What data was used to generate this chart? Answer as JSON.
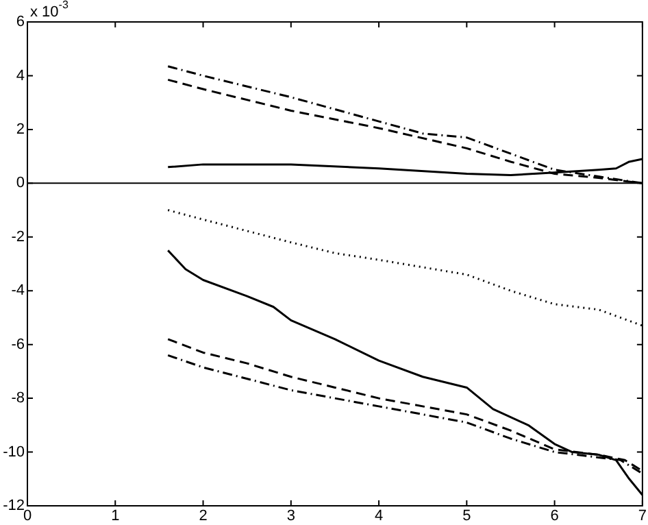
{
  "chart_data": {
    "type": "line",
    "x": [
      1.6,
      2,
      3,
      4,
      4.5,
      5,
      5.5,
      6,
      6.5,
      7
    ],
    "series": [
      {
        "color": "#000000",
        "line_style": "dashdot",
        "values": [
          4.35,
          4.0,
          3.2,
          2.3,
          1.85,
          1.7,
          1.1,
          0.5,
          0.25,
          0
        ]
      },
      {
        "color": "#000000",
        "line_style": "dashed",
        "x": [
          1.6,
          2,
          3,
          4,
          5,
          5.5,
          6,
          6.5,
          7
        ],
        "values": [
          3.85,
          3.5,
          2.7,
          2.05,
          1.3,
          0.8,
          0.35,
          0.2,
          0
        ]
      },
      {
        "color": "#000000",
        "line_style": "solid",
        "x": [
          1.6,
          2,
          3,
          4,
          5,
          5.5,
          6,
          6.5,
          6.7,
          6.85,
          7
        ],
        "values": [
          0.6,
          0.7,
          0.7,
          0.55,
          0.35,
          0.3,
          0.4,
          0.5,
          0.55,
          0.8,
          0.9
        ]
      },
      {
        "color": "#000000",
        "line_style": "dotted",
        "x": [
          1.6,
          2,
          3,
          3.5,
          4,
          5,
          5.5,
          6,
          6.5,
          7
        ],
        "values": [
          -1.0,
          -1.35,
          -2.2,
          -2.6,
          -2.85,
          -3.4,
          -4.0,
          -4.5,
          -4.7,
          -5.3
        ]
      },
      {
        "color": "#000000",
        "line_style": "solid",
        "x": [
          1.6,
          1.8,
          2,
          2.5,
          2.8,
          3,
          3.5,
          4,
          4.5,
          5,
          5.3,
          5.7,
          6,
          6.2,
          6.5,
          6.7,
          6.85,
          7
        ],
        "values": [
          -2.5,
          -3.2,
          -3.6,
          -4.2,
          -4.6,
          -5.1,
          -5.8,
          -6.6,
          -7.2,
          -7.6,
          -8.4,
          -9.0,
          -9.7,
          -10.0,
          -10.1,
          -10.3,
          -11.0,
          -11.6
        ]
      },
      {
        "color": "#000000",
        "line_style": "dashed",
        "x": [
          1.6,
          2,
          2.5,
          3,
          3.5,
          4,
          5,
          5.5,
          6,
          6.5,
          6.8,
          7
        ],
        "values": [
          -5.8,
          -6.3,
          -6.7,
          -7.2,
          -7.6,
          -8.0,
          -8.6,
          -9.2,
          -9.9,
          -10.1,
          -10.3,
          -10.7
        ]
      },
      {
        "color": "#000000",
        "line_style": "dashdot",
        "x": [
          1.6,
          2,
          3,
          4,
          5,
          5.5,
          6,
          6.5,
          6.75,
          7
        ],
        "values": [
          -6.4,
          -6.85,
          -7.7,
          -8.3,
          -8.9,
          -9.5,
          -10.0,
          -10.2,
          -10.3,
          -10.8
        ]
      }
    ],
    "xlim": [
      0,
      7
    ],
    "xticks": [
      0,
      1,
      2,
      3,
      4,
      5,
      6,
      7
    ],
    "ylim": [
      -12,
      6
    ],
    "yticks": [
      -12,
      -10,
      -8,
      -6,
      -4,
      -2,
      0,
      2,
      4,
      6
    ],
    "ref_lines": [
      {
        "axis": "y",
        "value": 0,
        "color": "#000000"
      }
    ],
    "annotations": [
      "x 10$^{-3}$"
    ],
    "grid": false,
    "legend": false,
    "marker": "none"
  }
}
